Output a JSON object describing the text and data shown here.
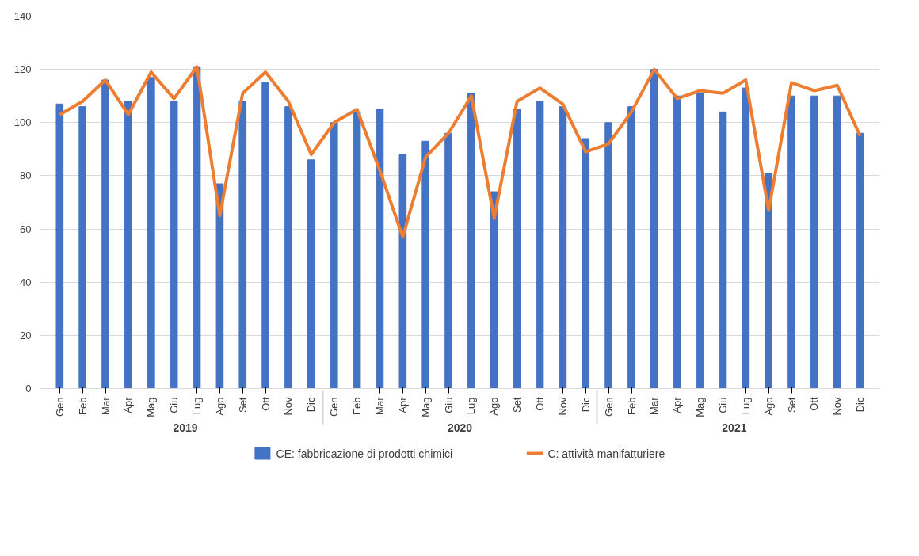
{
  "chart_data": {
    "type": "bar",
    "categories": [
      "Gen",
      "Feb",
      "Mar",
      "Apr",
      "Mag",
      "Giu",
      "Lug",
      "Ago",
      "Set",
      "Ott",
      "Nov",
      "Dic",
      "Gen",
      "Feb",
      "Mar",
      "Apr",
      "Mag",
      "Giu",
      "Lug",
      "Ago",
      "Set",
      "Ott",
      "Nov",
      "Dic",
      "Gen",
      "Feb",
      "Mar",
      "Apr",
      "Mag",
      "Giu",
      "Lug",
      "Ago",
      "Set",
      "Ott",
      "Nov",
      "Dic"
    ],
    "annotations": [
      "2019",
      "2020",
      "2021"
    ],
    "series": [
      {
        "name": "CE: fabbricazione di prodotti chimici",
        "color": "#4472c4",
        "values": [
          107,
          106,
          116,
          108,
          117,
          108,
          121,
          77,
          108,
          115,
          106,
          86,
          100,
          104,
          105,
          88,
          93,
          96,
          111,
          74,
          105,
          108,
          106,
          94,
          100,
          106,
          120,
          110,
          111,
          104,
          113,
          81,
          110,
          110,
          110,
          96
        ]
      },
      {
        "name": "C: attività manifatturiere",
        "type": "line",
        "color": "#ed7d31",
        "values": [
          103,
          108,
          116,
          103,
          119,
          109,
          121,
          65,
          111,
          119,
          108,
          88,
          100,
          105,
          82,
          57,
          87,
          96,
          110,
          64,
          108,
          113,
          107,
          89,
          92,
          104,
          120,
          109,
          112,
          111,
          116,
          67,
          115,
          112,
          114,
          95
        ]
      }
    ],
    "ylim": [
      0,
      140
    ],
    "yticks": [
      0,
      20,
      40,
      60,
      80,
      100,
      120,
      140
    ],
    "grid": "y",
    "legend": "bottom",
    "line_style": "solid",
    "marker": "none"
  }
}
